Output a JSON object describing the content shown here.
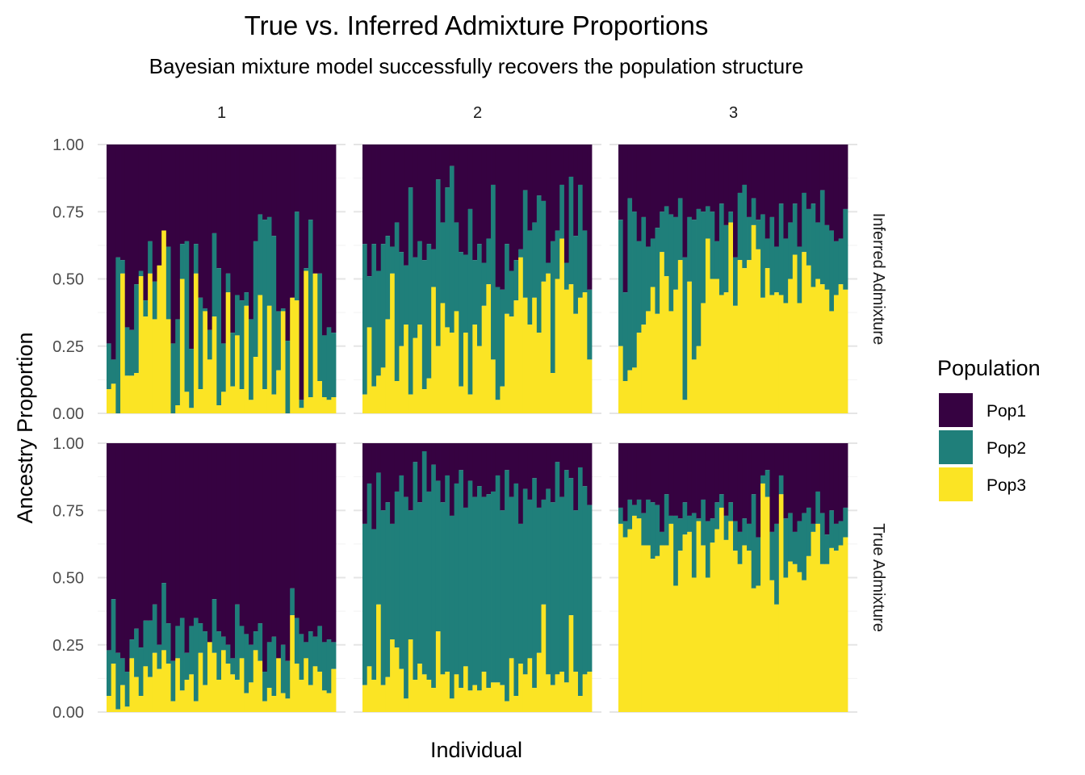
{
  "chart_data": {
    "type": "bar",
    "stacked": true,
    "title": "True vs. Inferred Admixture Proportions",
    "subtitle": "Bayesian mixture model successfully recovers the population structure",
    "xlabel": "Individual",
    "ylabel": "Ancestry Proportion",
    "ylim": [
      0,
      1
    ],
    "yticks": [
      "0.00",
      "0.25",
      "0.50",
      "0.75",
      "1.00"
    ],
    "grid": true,
    "legend": {
      "title": "Population",
      "placement": "right",
      "entries": [
        {
          "name": "Pop1",
          "color": "#360241"
        },
        {
          "name": "Pop2",
          "color": "#1f7f7a"
        },
        {
          "name": "Pop3",
          "color": "#fbe424"
        }
      ]
    },
    "column_facets": [
      "1",
      "2",
      "3"
    ],
    "row_facets": [
      "Inferred Admixture",
      "True Admixture"
    ],
    "individuals_per_panel": 50,
    "panels": [
      {
        "row": "Inferred Admixture",
        "col": "1",
        "pop3": [
          0.09,
          0.11,
          0.0,
          0.52,
          0.14,
          0.14,
          0.15,
          0.51,
          0.36,
          0.52,
          0.35,
          0.55,
          0.68,
          0.35,
          0.0,
          0.03,
          0.5,
          0.08,
          0.02,
          0.52,
          0.09,
          0.38,
          0.2,
          0.36,
          0.03,
          0.08,
          0.45,
          0.1,
          0.29,
          0.09,
          0.4,
          0.05,
          0.21,
          0.44,
          0.09,
          0.4,
          0.07,
          0.16,
          0.38,
          0.0,
          0.43,
          0.42,
          0.02,
          0.53,
          0.06,
          0.52,
          0.12,
          0.06,
          0.05,
          0.06
        ],
        "pop2": [
          0.26,
          0.2,
          0.58,
          0.57,
          0.32,
          0.31,
          0.48,
          0.53,
          0.42,
          0.64,
          0.49,
          0.55,
          0.68,
          0.62,
          0.26,
          0.35,
          0.63,
          0.64,
          0.24,
          0.63,
          0.43,
          0.39,
          0.31,
          0.67,
          0.54,
          0.26,
          0.52,
          0.3,
          0.44,
          0.42,
          0.45,
          0.35,
          0.64,
          0.74,
          0.72,
          0.73,
          0.66,
          0.38,
          0.39,
          0.27,
          0.43,
          0.75,
          0.05,
          0.54,
          0.72,
          0.49,
          0.52,
          0.29,
          0.32,
          0.3
        ]
      },
      {
        "row": "Inferred Admixture",
        "col": "2",
        "pop3": [
          0.07,
          0.32,
          0.1,
          0.14,
          0.17,
          0.35,
          0.52,
          0.12,
          0.25,
          0.33,
          0.07,
          0.28,
          0.33,
          0.09,
          0.13,
          0.47,
          0.25,
          0.41,
          0.32,
          0.3,
          0.38,
          0.1,
          0.3,
          0.07,
          0.33,
          0.25,
          0.4,
          0.48,
          0.2,
          0.05,
          0.1,
          0.37,
          0.36,
          0.42,
          0.58,
          0.43,
          0.33,
          0.43,
          0.3,
          0.49,
          0.52,
          0.15,
          0.5,
          0.65,
          0.46,
          0.48,
          0.37,
          0.43,
          0.45,
          0.2
        ],
        "pop2": [
          0.63,
          0.51,
          0.63,
          0.53,
          0.63,
          0.66,
          0.62,
          0.71,
          0.6,
          0.55,
          0.84,
          0.58,
          0.64,
          0.57,
          0.63,
          0.61,
          0.87,
          0.71,
          0.84,
          0.92,
          0.71,
          0.6,
          0.59,
          0.76,
          0.57,
          0.63,
          0.56,
          0.65,
          0.85,
          0.47,
          0.46,
          0.63,
          0.53,
          0.57,
          0.61,
          0.83,
          0.68,
          0.71,
          0.81,
          0.79,
          0.56,
          0.64,
          0.68,
          0.85,
          0.56,
          0.88,
          0.66,
          0.85,
          0.68,
          0.46
        ]
      },
      {
        "row": "Inferred Admixture",
        "col": "3",
        "pop3": [
          0.25,
          0.12,
          0.16,
          0.17,
          0.3,
          0.33,
          0.38,
          0.47,
          0.37,
          0.6,
          0.51,
          0.38,
          0.46,
          0.57,
          0.05,
          0.49,
          0.2,
          0.25,
          0.41,
          0.65,
          0.5,
          0.5,
          0.44,
          0.45,
          0.71,
          0.4,
          0.57,
          0.54,
          0.57,
          0.7,
          0.61,
          0.43,
          0.54,
          0.44,
          0.45,
          0.44,
          0.41,
          0.5,
          0.59,
          0.41,
          0.6,
          0.55,
          0.47,
          0.5,
          0.48,
          0.46,
          0.38,
          0.44,
          0.48,
          0.46
        ],
        "pop2": [
          0.72,
          0.45,
          0.8,
          0.75,
          0.64,
          0.73,
          0.62,
          0.65,
          0.69,
          0.75,
          0.77,
          0.74,
          0.73,
          0.8,
          0.58,
          0.73,
          0.72,
          0.76,
          0.75,
          0.77,
          0.75,
          0.64,
          0.78,
          0.7,
          0.75,
          0.58,
          0.82,
          0.85,
          0.73,
          0.8,
          0.72,
          0.74,
          0.65,
          0.73,
          0.62,
          0.78,
          0.65,
          0.71,
          0.78,
          0.62,
          0.82,
          0.76,
          0.78,
          0.71,
          0.83,
          0.7,
          0.68,
          0.64,
          0.65,
          0.76
        ]
      },
      {
        "row": "True Admixture",
        "col": "1",
        "pop3": [
          0.06,
          0.18,
          0.01,
          0.1,
          0.02,
          0.2,
          0.13,
          0.06,
          0.17,
          0.13,
          0.22,
          0.16,
          0.23,
          0.18,
          0.04,
          0.2,
          0.08,
          0.12,
          0.14,
          0.04,
          0.22,
          0.1,
          0.26,
          0.22,
          0.12,
          0.23,
          0.18,
          0.14,
          0.12,
          0.2,
          0.07,
          0.11,
          0.23,
          0.19,
          0.04,
          0.09,
          0.06,
          0.2,
          0.07,
          0.05,
          0.36,
          0.18,
          0.12,
          0.2,
          0.1,
          0.17,
          0.15,
          0.08,
          0.07,
          0.16
        ],
        "pop2": [
          0.23,
          0.42,
          0.22,
          0.2,
          0.15,
          0.27,
          0.31,
          0.24,
          0.34,
          0.34,
          0.4,
          0.25,
          0.48,
          0.33,
          0.19,
          0.32,
          0.35,
          0.22,
          0.32,
          0.35,
          0.33,
          0.3,
          0.25,
          0.42,
          0.3,
          0.28,
          0.25,
          0.2,
          0.4,
          0.32,
          0.29,
          0.25,
          0.3,
          0.33,
          0.15,
          0.26,
          0.28,
          0.2,
          0.25,
          0.19,
          0.46,
          0.35,
          0.29,
          0.26,
          0.3,
          0.28,
          0.32,
          0.26,
          0.27,
          0.26
        ]
      },
      {
        "row": "True Admixture",
        "col": "2",
        "pop3": [
          0.1,
          0.17,
          0.12,
          0.4,
          0.1,
          0.13,
          0.27,
          0.24,
          0.16,
          0.05,
          0.27,
          0.12,
          0.18,
          0.14,
          0.12,
          0.09,
          0.3,
          0.14,
          0.15,
          0.05,
          0.14,
          0.09,
          0.17,
          0.08,
          0.1,
          0.08,
          0.15,
          0.09,
          0.11,
          0.11,
          0.1,
          0.04,
          0.2,
          0.06,
          0.18,
          0.14,
          0.2,
          0.09,
          0.22,
          0.4,
          0.14,
          0.1,
          0.14,
          0.15,
          0.11,
          0.36,
          0.15,
          0.06,
          0.14,
          0.15
        ],
        "pop2": [
          0.7,
          0.85,
          0.68,
          0.89,
          0.75,
          0.78,
          0.7,
          0.82,
          0.88,
          0.8,
          0.75,
          0.93,
          0.78,
          0.97,
          0.82,
          0.92,
          0.86,
          0.78,
          0.88,
          0.73,
          0.85,
          0.9,
          0.76,
          0.86,
          0.8,
          0.84,
          0.8,
          0.81,
          0.82,
          0.88,
          0.75,
          0.9,
          0.8,
          0.85,
          0.7,
          0.83,
          0.79,
          0.87,
          0.76,
          0.79,
          0.83,
          0.78,
          0.93,
          0.8,
          0.9,
          0.87,
          0.75,
          0.91,
          0.84,
          0.77
        ]
      },
      {
        "row": "True Admixture",
        "col": "3",
        "pop3": [
          0.7,
          0.65,
          0.68,
          0.73,
          0.72,
          0.62,
          0.62,
          0.57,
          0.58,
          0.62,
          0.62,
          0.7,
          0.47,
          0.6,
          0.66,
          0.67,
          0.5,
          0.71,
          0.62,
          0.5,
          0.63,
          0.68,
          0.76,
          0.64,
          0.71,
          0.6,
          0.55,
          0.62,
          0.6,
          0.46,
          0.47,
          0.85,
          0.8,
          0.49,
          0.4,
          0.81,
          0.5,
          0.56,
          0.55,
          0.52,
          0.49,
          0.58,
          0.67,
          0.7,
          0.55,
          0.55,
          0.61,
          0.6,
          0.62,
          0.65
        ],
        "pop2": [
          0.76,
          0.71,
          0.79,
          0.77,
          0.79,
          0.74,
          0.79,
          0.78,
          0.77,
          0.67,
          0.81,
          0.73,
          0.73,
          0.72,
          0.78,
          0.73,
          0.74,
          0.72,
          0.79,
          0.71,
          0.72,
          0.78,
          0.81,
          0.73,
          0.78,
          0.71,
          0.67,
          0.72,
          0.7,
          0.81,
          0.65,
          0.88,
          0.9,
          0.67,
          0.7,
          0.88,
          0.72,
          0.74,
          0.67,
          0.71,
          0.74,
          0.76,
          0.7,
          0.82,
          0.74,
          0.66,
          0.75,
          0.7,
          0.71,
          0.76
        ]
      }
    ]
  }
}
